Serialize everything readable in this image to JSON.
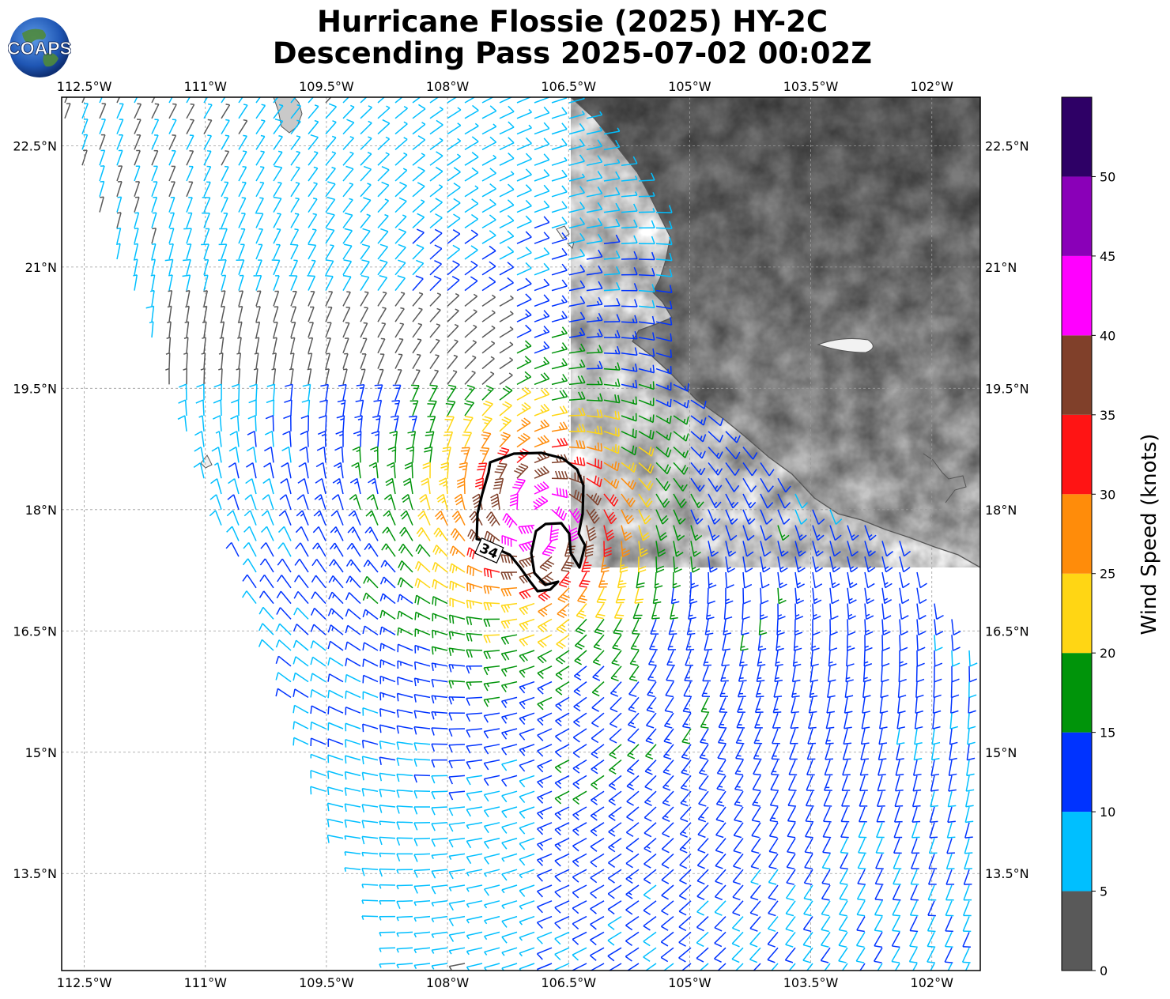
{
  "title": {
    "line1": "Hurricane Flossie (2025) HY-2C",
    "line2": "Descending Pass 2025-07-02 00:02Z"
  },
  "logo": {
    "text": "COAPS",
    "icon": "globe-logo-icon"
  },
  "axes": {
    "lon_labels": [
      "112.5°W",
      "111°W",
      "109.5°W",
      "108°W",
      "106.5°W",
      "105°W",
      "103.5°W",
      "102°W"
    ],
    "lon_values": [
      -112.5,
      -111,
      -109.5,
      -108,
      -106.5,
      -105,
      -103.5,
      -102
    ],
    "lat_labels": [
      "22.5°N",
      "21°N",
      "19.5°N",
      "18°N",
      "16.5°N",
      "15°N",
      "13.5°N"
    ],
    "lat_values": [
      22.5,
      21,
      19.5,
      18,
      16.5,
      15,
      13.5
    ],
    "lon_range": [
      -112.78,
      -101.4
    ],
    "lat_range": [
      12.3,
      23.1
    ]
  },
  "storm": {
    "center": {
      "lon": -106.9,
      "lat": 17.9
    },
    "contour_label": "34"
  },
  "colorbar": {
    "title": "Wind Speed (knots)",
    "ticks": [
      "0",
      "5",
      "10",
      "15",
      "20",
      "25",
      "30",
      "35",
      "40",
      "45",
      "50"
    ],
    "bins": [
      {
        "min": 0,
        "max": 5,
        "color": "#595959"
      },
      {
        "min": 5,
        "max": 10,
        "color": "#00bfff"
      },
      {
        "min": 10,
        "max": 15,
        "color": "#0033ff"
      },
      {
        "min": 15,
        "max": 20,
        "color": "#00940a"
      },
      {
        "min": 20,
        "max": 25,
        "color": "#ffd614"
      },
      {
        "min": 25,
        "max": 30,
        "color": "#ff8c0a"
      },
      {
        "min": 30,
        "max": 35,
        "color": "#ff1414"
      },
      {
        "min": 35,
        "max": 40,
        "color": "#80402a"
      },
      {
        "min": 40,
        "max": 45,
        "color": "#ff00ff"
      },
      {
        "min": 45,
        "max": 50,
        "color": "#8a00b8"
      },
      {
        "min": 50,
        "max": 55,
        "color": "#2e0066"
      }
    ]
  },
  "colors": {
    "land_low": "#e6e6e6",
    "land_high": "#4a4a4a",
    "coast": "#555555",
    "grid": "#9a9a9a",
    "contour": "#000000"
  }
}
